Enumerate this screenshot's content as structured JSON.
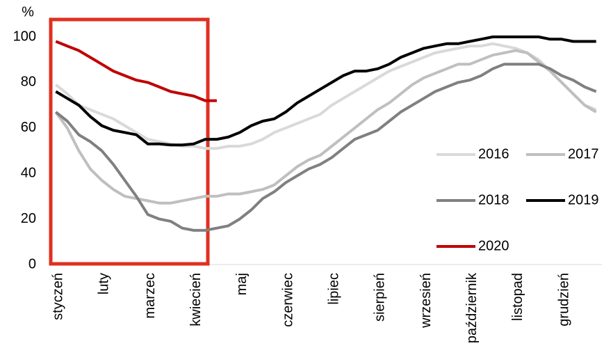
{
  "chart_data": {
    "type": "line",
    "ylabel": "%",
    "categories": [
      "styczeń",
      null,
      null,
      null,
      "luty",
      null,
      null,
      null,
      "marzec",
      null,
      null,
      null,
      "kwiecień",
      null,
      null,
      null,
      "maj",
      null,
      null,
      null,
      "czerwiec",
      null,
      null,
      null,
      "lipiec",
      null,
      null,
      null,
      "sierpień",
      null,
      null,
      null,
      "wrzesień",
      null,
      null,
      null,
      "październik",
      null,
      null,
      null,
      "listopad",
      null,
      null,
      null,
      "grudzień",
      null,
      null,
      null
    ],
    "series": [
      {
        "name": "2016",
        "color": "#d9d9d9",
        "values": [
          79,
          75,
          70,
          68,
          66,
          64,
          61,
          58,
          55,
          54,
          53,
          52,
          52,
          51,
          51,
          52,
          52,
          53,
          55,
          58,
          60,
          62,
          64,
          66,
          70,
          73,
          76,
          79,
          82,
          85,
          87,
          89,
          91,
          93,
          94,
          95,
          96,
          96,
          97,
          96,
          95,
          93,
          90,
          85,
          80,
          75,
          70,
          68
        ]
      },
      {
        "name": "2017",
        "color": "#bfbfbf",
        "values": [
          67,
          60,
          50,
          42,
          37,
          33,
          30,
          29,
          28,
          27,
          27,
          28,
          29,
          30,
          30,
          31,
          31,
          32,
          33,
          35,
          39,
          43,
          46,
          48,
          52,
          56,
          60,
          64,
          68,
          71,
          75,
          79,
          82,
          84,
          86,
          88,
          88,
          90,
          92,
          93,
          94,
          93,
          89,
          85,
          80,
          75,
          70,
          67
        ]
      },
      {
        "name": "2018",
        "color": "#808080",
        "values": [
          67,
          63,
          57,
          54,
          50,
          44,
          37,
          30,
          22,
          20,
          19,
          16,
          15,
          15,
          16,
          17,
          20,
          24,
          29,
          32,
          36,
          39,
          42,
          44,
          47,
          51,
          55,
          57,
          59,
          63,
          67,
          70,
          73,
          76,
          78,
          80,
          81,
          83,
          86,
          88,
          88,
          88,
          88,
          86,
          83,
          81,
          78,
          76
        ]
      },
      {
        "name": "2019",
        "color": "#000000",
        "values": [
          76,
          73,
          70,
          65,
          61,
          59,
          58,
          57,
          53,
          53,
          52.5,
          52.5,
          53,
          55,
          55,
          56,
          58,
          61,
          63,
          64,
          67,
          71,
          74,
          77,
          80,
          83,
          85,
          85,
          86,
          88,
          91,
          93,
          95,
          96,
          97,
          97,
          98,
          99,
          100,
          100,
          100,
          100,
          100,
          99,
          99,
          98,
          98,
          98
        ]
      },
      {
        "name": "2020",
        "color": "#c00000",
        "values": [
          98,
          96,
          94,
          91,
          88,
          85,
          83,
          81,
          80,
          78,
          76,
          75,
          74,
          72,
          72,
          null,
          null,
          null,
          null,
          null,
          null,
          null,
          null,
          null,
          null,
          null,
          null,
          null,
          null,
          null,
          null,
          null,
          null,
          null,
          null,
          null,
          null,
          null,
          null,
          null,
          null,
          null,
          null,
          null,
          null,
          null,
          null,
          null
        ]
      }
    ],
    "ylim": [
      0,
      100
    ],
    "yticks": [
      0,
      20,
      40,
      60,
      80,
      100
    ],
    "grid": false,
    "legend": "right"
  }
}
